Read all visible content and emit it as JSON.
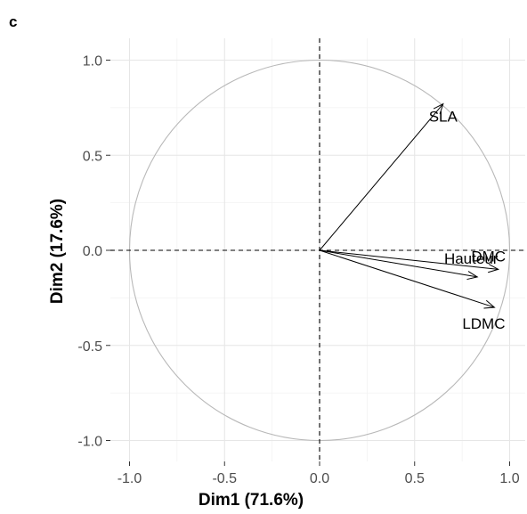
{
  "panel_tag": "c",
  "chart_data": {
    "type": "scatter",
    "subtype": "pca-correlation-circle",
    "title": "",
    "xlabel": "Dim1 (71.6%)",
    "ylabel": "Dim2 (17.6%)",
    "xlim": [
      -1.1,
      1.1
    ],
    "ylim": [
      -1.1,
      1.1
    ],
    "x_ticks": [
      -1.0,
      -0.5,
      0.0,
      0.5,
      1.0
    ],
    "x_tick_labels": [
      "-1.0",
      "-0.5",
      "0.0",
      "0.5",
      "1.0"
    ],
    "y_ticks": [
      1.0,
      0.5,
      0.0,
      -0.5,
      -1.0
    ],
    "y_tick_labels": [
      "1.0",
      "0.5",
      "0.0",
      "-0.5",
      "-1.0"
    ],
    "grid": true,
    "unit_circle": true,
    "reference_lines": [
      0,
      0
    ],
    "variables": [
      {
        "name": "SLA",
        "x": 0.65,
        "y": 0.77
      },
      {
        "name": "DMC",
        "x": 0.94,
        "y": -0.1
      },
      {
        "name": "Hauteur",
        "x": 0.83,
        "y": -0.14
      },
      {
        "name": "LDMC",
        "x": 0.92,
        "y": -0.3
      }
    ]
  }
}
